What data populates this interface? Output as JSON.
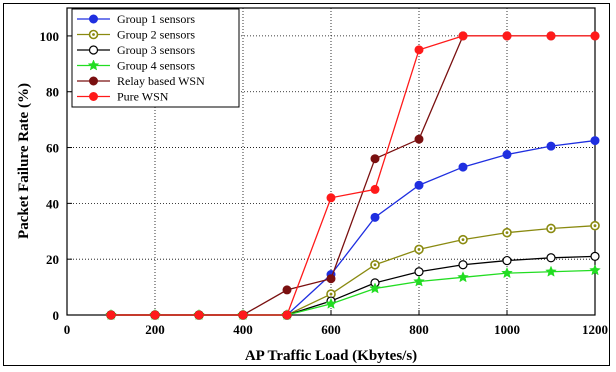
{
  "chart_data": {
    "type": "line",
    "title": "",
    "xlabel": "AP Traffic Load (Kbytes/s)",
    "ylabel": "Packet Failure Rate (%)",
    "xlim": [
      0,
      1200
    ],
    "ylim": [
      0,
      110
    ],
    "xticks": [
      0,
      200,
      400,
      600,
      800,
      1000,
      1200
    ],
    "yticks": [
      0,
      20,
      40,
      60,
      80,
      100
    ],
    "grid": true,
    "legend_position": "top-left",
    "x": [
      100,
      200,
      300,
      400,
      500,
      600,
      700,
      800,
      900,
      1000,
      1100,
      1200
    ],
    "series": [
      {
        "name": "Group 1 sensors",
        "color": "#1f2fe0",
        "marker": "filled-circle",
        "values": [
          0,
          0,
          0,
          0,
          0,
          14.5,
          35,
          46.5,
          53,
          57.5,
          60.5,
          62.5
        ]
      },
      {
        "name": "Group 2 sensors",
        "color": "#8a8a10",
        "marker": "circle-dot",
        "values": [
          0,
          0,
          0,
          0,
          0,
          7.5,
          18,
          23.5,
          27,
          29.5,
          31,
          32
        ]
      },
      {
        "name": "Group 3 sensors",
        "color": "#000000",
        "marker": "open-circle",
        "values": [
          0,
          0,
          0,
          0,
          0,
          5,
          11.5,
          15.5,
          18,
          19.5,
          20.5,
          21
        ]
      },
      {
        "name": "Group 4 sensors",
        "color": "#22dd22",
        "marker": "star",
        "values": [
          0,
          0,
          0,
          0,
          0,
          4,
          9.5,
          12,
          13.5,
          15,
          15.5,
          16
        ]
      },
      {
        "name": "Relay based WSN",
        "color": "#7a1010",
        "marker": "filled-circle",
        "values": [
          0,
          0,
          0,
          0,
          9,
          13,
          56,
          63,
          100,
          100,
          100,
          100
        ]
      },
      {
        "name": "Pure WSN",
        "color": "#ff1a1a",
        "marker": "filled-circle",
        "values": [
          0,
          0,
          0,
          0,
          0,
          42,
          45,
          95,
          100,
          100,
          100,
          100
        ]
      }
    ]
  }
}
